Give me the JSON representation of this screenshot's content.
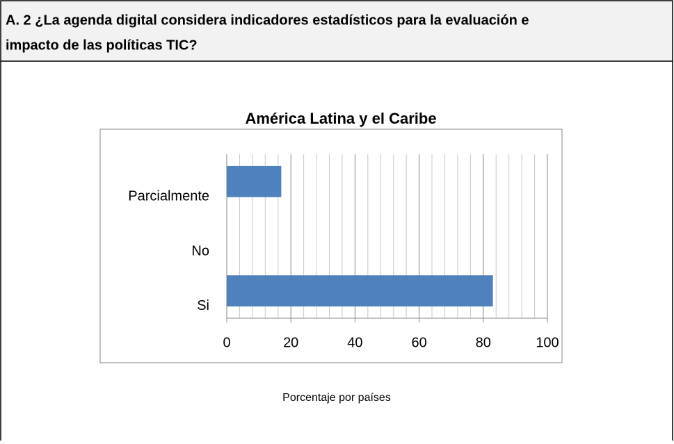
{
  "header": {
    "lines": [
      "A. 2 ¿La agenda digital considera indicadores estadísticos para la evaluación e",
      "impacto de las políticas TIC?"
    ]
  },
  "chart_data": {
    "type": "bar",
    "orientation": "horizontal",
    "title": "América Latina y el Caribe",
    "x_label": "Porcentaje por países",
    "categories": [
      "Si",
      "No",
      "Parcialmente"
    ],
    "values": [
      83,
      0,
      17
    ],
    "color": "#4f81bd",
    "xlim": [
      0,
      100
    ],
    "xticks": [
      0,
      20,
      40,
      60,
      80,
      100
    ],
    "xticks_minor": [
      4,
      8,
      12,
      16,
      24,
      28,
      32,
      36,
      44,
      48,
      52,
      56,
      64,
      68,
      72,
      76,
      84,
      88,
      92,
      96
    ],
    "grid": true
  }
}
